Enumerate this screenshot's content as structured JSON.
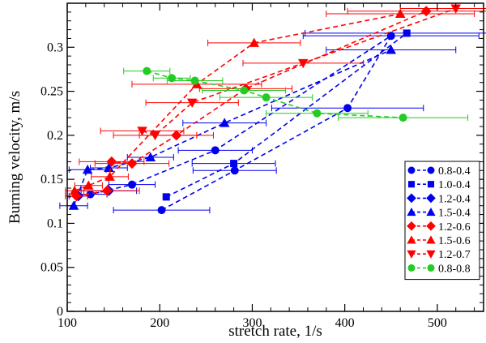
{
  "chart_data": {
    "type": "scatter",
    "xlabel": "stretch rate, 1/s",
    "ylabel": "Burning velocity, m/s",
    "xlim": [
      100,
      550
    ],
    "ylim": [
      0,
      0.35
    ],
    "x_ticks": [
      100,
      200,
      300,
      400,
      500
    ],
    "y_ticks": [
      0,
      0.05,
      0.1,
      0.15,
      0.2,
      0.25,
      0.3
    ],
    "x_tick_labels": [
      "100",
      "200",
      "300",
      "400",
      "500"
    ],
    "y_tick_labels": [
      "0",
      "0.05",
      "0.1",
      "0.15",
      "0.2",
      "0.25",
      "0.3"
    ],
    "grid": false,
    "legend_position": "bottom-right",
    "connection": "dashed lines connect consecutive points of each series",
    "series": [
      {
        "name": "0.8-0.4",
        "color": "#0000ee",
        "marker": "circle",
        "points": [
          {
            "x": 202,
            "y": 0.115,
            "xerr": 52
          },
          {
            "x": 281,
            "y": 0.16,
            "xerr": 45
          },
          {
            "x": 403,
            "y": 0.231,
            "xerr": 82
          },
          {
            "x": 450,
            "y": 0.313,
            "xerr": 95
          },
          {
            "x": 260,
            "y": 0.183,
            "xerr": 40
          },
          {
            "x": 170,
            "y": 0.144,
            "xerr": 25
          },
          {
            "x": 125,
            "y": 0.133,
            "xerr": 18
          }
        ]
      },
      {
        "name": "1.0-0.4",
        "color": "#0000ee",
        "marker": "square",
        "points": [
          {
            "x": 207,
            "y": 0.13,
            "xerr": 0
          },
          {
            "x": 280,
            "y": 0.168,
            "xerr": 45
          },
          {
            "x": 467,
            "y": 0.316,
            "xerr": 110
          }
        ]
      },
      {
        "name": "1.2-0.4",
        "color": "#0000ee",
        "marker": "diamond",
        "points": [
          {
            "x": 112,
            "y": 0.131,
            "xerr": 10
          },
          {
            "x": 145,
            "y": 0.137,
            "xerr": 30
          }
        ]
      },
      {
        "name": "1.5-0.4",
        "color": "#0000ee",
        "marker": "triangle-up",
        "points": [
          {
            "x": 107,
            "y": 0.12,
            "xerr": 15
          },
          {
            "x": 122,
            "y": 0.161,
            "xerr": 20
          },
          {
            "x": 145,
            "y": 0.163,
            "xerr": 20
          },
          {
            "x": 190,
            "y": 0.175,
            "xerr": 25
          },
          {
            "x": 270,
            "y": 0.214,
            "xerr": 45
          },
          {
            "x": 450,
            "y": 0.297,
            "xerr": 70
          }
        ]
      },
      {
        "name": "1.2-0.6",
        "color": "#ff0000",
        "marker": "diamond",
        "points": [
          {
            "x": 110,
            "y": 0.131,
            "xerr": 12
          },
          {
            "x": 143,
            "y": 0.137,
            "xerr": 35
          },
          {
            "x": 148,
            "y": 0.17,
            "xerr": 35
          },
          {
            "x": 170,
            "y": 0.168,
            "xerr": 40
          },
          {
            "x": 218,
            "y": 0.2,
            "xerr": 40
          },
          {
            "x": 293,
            "y": 0.253,
            "xerr": 50
          },
          {
            "x": 488,
            "y": 0.341,
            "xerr": 85
          }
        ]
      },
      {
        "name": "1.5-0.6",
        "color": "#ff0000",
        "marker": "triangle-up",
        "points": [
          {
            "x": 108,
            "y": 0.137,
            "xerr": 10
          },
          {
            "x": 123,
            "y": 0.143,
            "xerr": 15
          },
          {
            "x": 146,
            "y": 0.153,
            "xerr": 20
          },
          {
            "x": 240,
            "y": 0.258,
            "xerr": 70
          },
          {
            "x": 302,
            "y": 0.305,
            "xerr": 50
          },
          {
            "x": 460,
            "y": 0.338,
            "xerr": 80
          }
        ]
      },
      {
        "name": "1.2-0.7",
        "color": "#ff0000",
        "marker": "triangle-down",
        "points": [
          {
            "x": 181,
            "y": 0.205,
            "xerr": 45
          },
          {
            "x": 195,
            "y": 0.2,
            "xerr": 45
          },
          {
            "x": 235,
            "y": 0.237,
            "xerr": 50
          },
          {
            "x": 355,
            "y": 0.282,
            "xerr": 65
          },
          {
            "x": 520,
            "y": 0.344,
            "xerr": 60
          }
        ]
      },
      {
        "name": "0.8-0.8",
        "color": "#22cc22",
        "marker": "circle",
        "points": [
          {
            "x": 186,
            "y": 0.273,
            "xerr": 25
          },
          {
            "x": 213,
            "y": 0.265,
            "xerr": 20
          },
          {
            "x": 238,
            "y": 0.262,
            "xerr": 30
          },
          {
            "x": 291,
            "y": 0.251,
            "xerr": 45
          },
          {
            "x": 315,
            "y": 0.243,
            "xerr": 50
          },
          {
            "x": 370,
            "y": 0.225,
            "xerr": 55
          },
          {
            "x": 463,
            "y": 0.22,
            "xerr": 70
          }
        ]
      }
    ]
  }
}
